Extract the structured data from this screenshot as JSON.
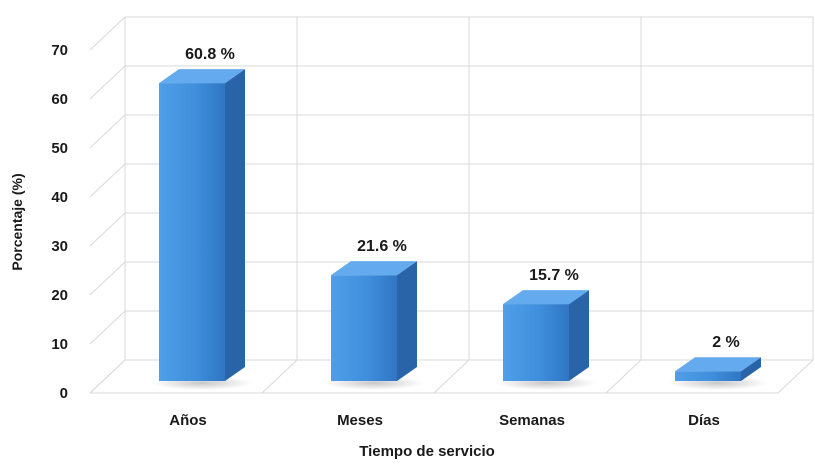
{
  "chart_data": {
    "type": "bar",
    "style": "3d-column",
    "categories": [
      "Años",
      "Meses",
      "Semanas",
      "Días"
    ],
    "values": [
      60.8,
      21.6,
      15.7,
      2
    ],
    "data_labels": [
      "60.8 %",
      "21.6 %",
      "15.7 %",
      "2 %"
    ],
    "xlabel": "Tiempo de servicio",
    "ylabel": "Porcentaje (%)",
    "ylim": [
      0,
      70
    ],
    "yticks": [
      0,
      10,
      20,
      30,
      40,
      50,
      60,
      70
    ],
    "grid": true,
    "legend": "none",
    "colors": {
      "bar_front": "#3f8fdc",
      "bar_side": "#2a64a8",
      "bar_top": "#64aaee",
      "grid": "#d9d9d9"
    }
  }
}
